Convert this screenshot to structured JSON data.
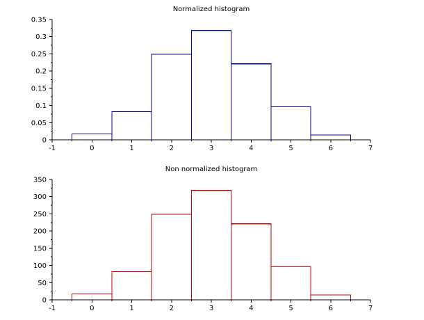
{
  "chart_data": [
    {
      "type": "bar",
      "title": "Normalized histogram",
      "xlabel": "",
      "ylabel": "",
      "categories": [
        "0",
        "1",
        "2",
        "3",
        "4",
        "5",
        "6"
      ],
      "x": [
        0,
        1,
        2,
        3,
        4,
        5,
        6
      ],
      "values": [
        0.017,
        0.082,
        0.249,
        0.318,
        0.221,
        0.096,
        0.014
      ],
      "color": "#0000aa",
      "xlim": [
        -1,
        7
      ],
      "ylim": [
        0,
        0.35
      ],
      "xticks": [
        -1,
        0,
        1,
        2,
        3,
        4,
        5,
        6,
        7
      ],
      "xtick_labels": [
        "-1",
        "0",
        "1",
        "2",
        "3",
        "4",
        "5",
        "6",
        "7"
      ],
      "yticks": [
        0,
        0.05,
        0.1,
        0.15,
        0.2,
        0.25,
        0.3,
        0.35
      ],
      "ytick_labels": [
        "0",
        "0.05",
        "0.1",
        "0.15",
        "0.2",
        "0.25",
        "0.3",
        "0.35"
      ],
      "grid": false
    },
    {
      "type": "bar",
      "title": "Non normalized histogram",
      "xlabel": "",
      "ylabel": "",
      "categories": [
        "0",
        "1",
        "2",
        "3",
        "4",
        "5",
        "6"
      ],
      "x": [
        0,
        1,
        2,
        3,
        4,
        5,
        6
      ],
      "values": [
        17,
        82,
        249,
        318,
        221,
        96,
        14
      ],
      "color": "#cc0000",
      "xlim": [
        -1,
        7
      ],
      "ylim": [
        0,
        350
      ],
      "xticks": [
        -1,
        0,
        1,
        2,
        3,
        4,
        5,
        6,
        7
      ],
      "xtick_labels": [
        "-1",
        "0",
        "1",
        "2",
        "3",
        "4",
        "5",
        "6",
        "7"
      ],
      "yticks": [
        0,
        50,
        100,
        150,
        200,
        250,
        300,
        350
      ],
      "ytick_labels": [
        "0",
        "50",
        "100",
        "150",
        "200",
        "250",
        "300",
        "350"
      ],
      "grid": false
    }
  ]
}
